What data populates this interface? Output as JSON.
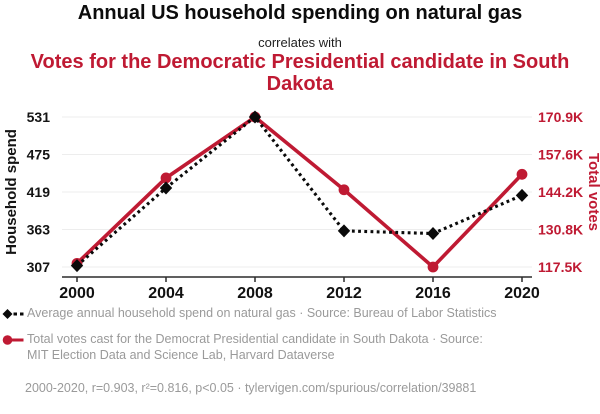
{
  "header": {
    "title": "Annual US household spending on natural gas",
    "subtitle": "correlates with",
    "title2": "Votes for the Democratic Presidential candidate in South Dakota"
  },
  "chart_data": {
    "type": "line",
    "title": "Annual US household spending on natural gas correlates with Votes for the Democratic Presidential candidate in South Dakota",
    "x": [
      2000,
      2004,
      2008,
      2012,
      2016,
      2020
    ],
    "x_ticks": [
      "2000",
      "2004",
      "2008",
      "2012",
      "2016",
      "2020"
    ],
    "grid": true,
    "legend_position": "bottom",
    "left_axis": {
      "label": "Household spend",
      "ticks": [
        531,
        475,
        419,
        363,
        307
      ],
      "range": [
        307,
        531
      ]
    },
    "right_axis": {
      "label": "Total votes",
      "ticks": [
        "170.9K",
        "157.6K",
        "144.2K",
        "130.8K",
        "117.5K"
      ],
      "tick_values": [
        170900,
        157600,
        144200,
        130800,
        117500
      ],
      "range": [
        117500,
        170900
      ]
    },
    "series": [
      {
        "name": "Average annual household spend on natural gas",
        "axis": "left",
        "color": "#0a0a0a",
        "line_style": "dashed",
        "marker": "diamond",
        "values": [
          309,
          425,
          531,
          361,
          357,
          414
        ]
      },
      {
        "name": "Total votes cast for the Democrat Presidential candidate in South Dakota",
        "axis": "right",
        "color": "#bf1a33",
        "line_style": "solid",
        "marker": "circle",
        "values": [
          118800,
          149200,
          170900,
          145000,
          117500,
          150500
        ]
      }
    ]
  },
  "legend": {
    "items": [
      {
        "marker": "black-diamond-dashed",
        "label": "Average annual household spend on natural gas · Source: Bureau of Labor Statistics"
      },
      {
        "marker": "red-circle-solid",
        "label": "Total votes cast for the Democrat Presidential candidate in South Dakota · Source: MIT Election Data and Science Lab, Harvard Dataverse"
      }
    ]
  },
  "footer": {
    "caption": "2000-2020, r=0.903, r²=0.816, p<0.05 · tylervigen.com/spurious/correlation/39881"
  },
  "colors": {
    "accent_red": "#bf1a33",
    "text_gray": "#9a9a9a",
    "grid": "#ededed",
    "axis": "#2b2b2b",
    "series_black": "#0a0a0a"
  }
}
